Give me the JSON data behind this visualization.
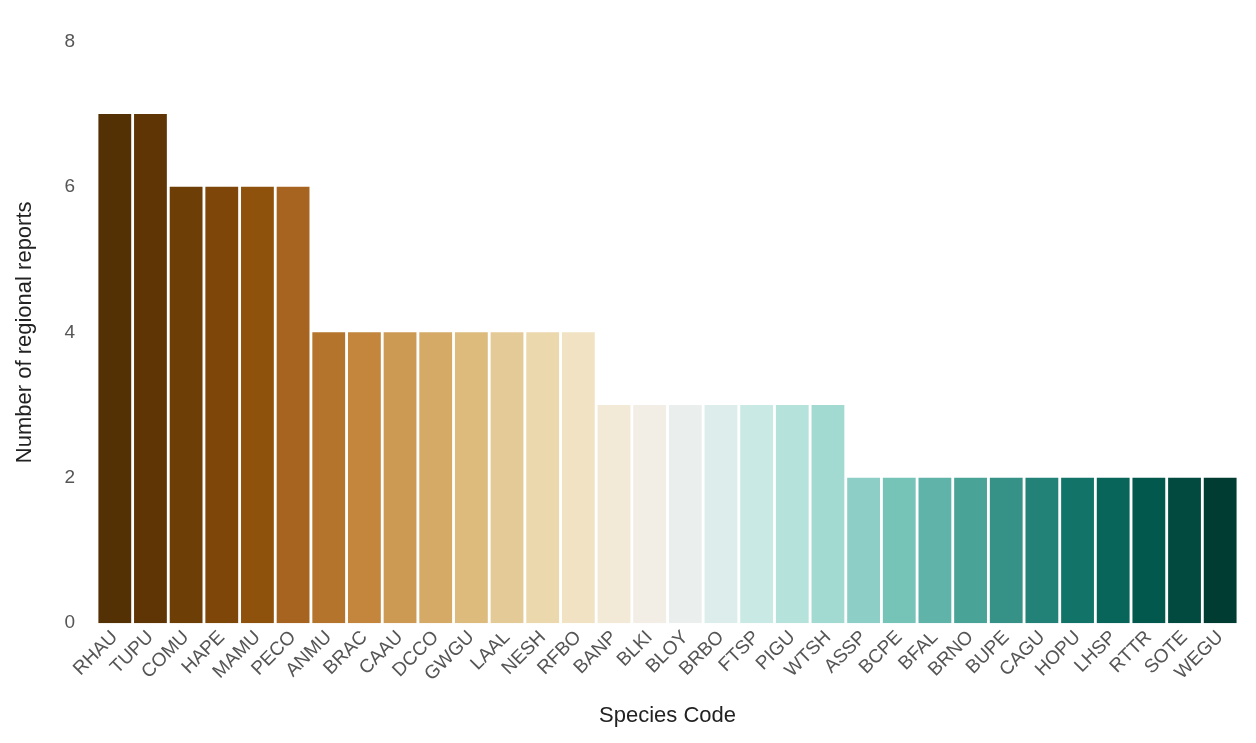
{
  "chart_data": {
    "type": "bar",
    "xlabel": "Species Code",
    "ylabel": "Number of regional reports",
    "categories": [
      "RHAU",
      "TUPU",
      "COMU",
      "HAPE",
      "MAMU",
      "PECO",
      "ANMU",
      "BRAC",
      "CAAU",
      "DCCO",
      "GWGU",
      "LAAL",
      "NESH",
      "RFBO",
      "BANP",
      "BLKI",
      "BLOY",
      "BRBO",
      "FTSP",
      "PIGU",
      "WTSH",
      "ASSP",
      "BCPE",
      "BFAL",
      "BRNO",
      "BUPE",
      "CAGU",
      "HOPU",
      "LHSP",
      "RTTR",
      "SOTE",
      "WEGU"
    ],
    "values": [
      7,
      7,
      6,
      6,
      6,
      6,
      4,
      4,
      4,
      4,
      4,
      4,
      4,
      4,
      3,
      3,
      3,
      3,
      3,
      3,
      3,
      2,
      2,
      2,
      2,
      2,
      2,
      2,
      2,
      2,
      2,
      2
    ],
    "colors": [
      "#543005",
      "#5f3506",
      "#6e3e07",
      "#7e4709",
      "#8f520d",
      "#a66420",
      "#b5742b",
      "#c3863c",
      "#cd9a53",
      "#d4aa66",
      "#dcbb7d",
      "#e4ca96",
      "#ebd8ac",
      "#f0e2c2",
      "#f2e9d6",
      "#f2eee6",
      "#eaeeed",
      "#dcedeb",
      "#c9e9e5",
      "#b6e2dc",
      "#a2d9d1",
      "#8dcfc6",
      "#76c3b8",
      "#5fb3a8",
      "#4aa397",
      "#369287",
      "#228277",
      "#127368",
      "#07655a",
      "#03584d",
      "#024a40",
      "#013c33"
    ],
    "ylim": [
      0,
      8
    ],
    "yticks": [
      0,
      2,
      4,
      6,
      8
    ],
    "grid": false,
    "legend": false
  }
}
